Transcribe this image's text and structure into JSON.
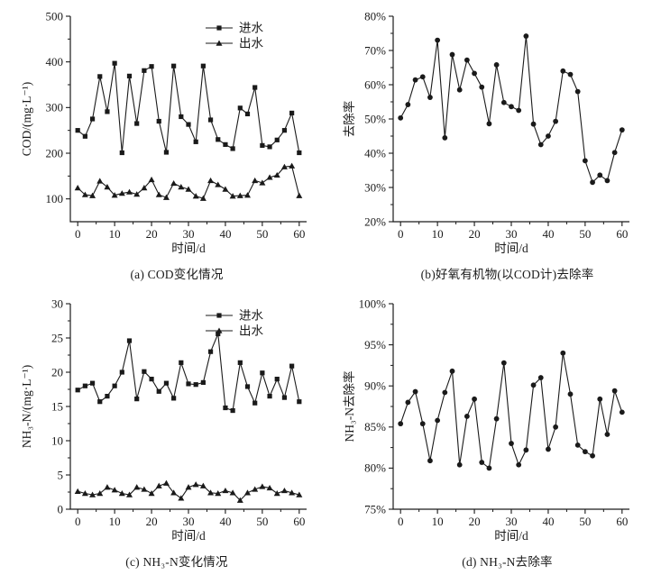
{
  "page": {
    "background": "#ffffff",
    "ink": "#1a1a1a"
  },
  "chart_data": [
    {
      "id": "a",
      "type": "line",
      "caption": "(a) COD变化情况",
      "xlabel": "时间/d",
      "ylabel": "COD/(mg·L⁻¹)",
      "xlim": [
        -2,
        62
      ],
      "ylim": [
        50,
        500
      ],
      "xticks": [
        0,
        10,
        20,
        30,
        40,
        50,
        60
      ],
      "xtick_labels": [
        "0",
        "10",
        "20",
        "30",
        "40",
        "50",
        "60"
      ],
      "yticks": [
        100,
        200,
        300,
        400,
        500
      ],
      "ytick_labels": [
        "100",
        "200",
        "300",
        "400",
        "500"
      ],
      "x_minor_step": 5,
      "y_minor_step": 50,
      "grid": false,
      "legend": true,
      "legend_position": "top-right",
      "x": [
        0,
        2,
        4,
        6,
        8,
        10,
        12,
        14,
        16,
        18,
        20,
        22,
        24,
        26,
        28,
        30,
        32,
        34,
        36,
        38,
        40,
        42,
        44,
        46,
        48,
        50,
        52,
        54,
        56,
        58,
        60
      ],
      "series": [
        {
          "key": "influent",
          "name": "进水",
          "marker": "square",
          "values": [
            250,
            237,
            275,
            368,
            291,
            397,
            201,
            369,
            265,
            381,
            390,
            270,
            202,
            391,
            280,
            263,
            225,
            391,
            273,
            230,
            219,
            210,
            299,
            286,
            344,
            217,
            214,
            229,
            250,
            288,
            201
          ]
        },
        {
          "key": "effluent",
          "name": "出水",
          "marker": "triangle",
          "values": [
            124,
            109,
            107,
            139,
            126,
            108,
            112,
            115,
            110,
            124,
            142,
            109,
            103,
            134,
            126,
            121,
            106,
            101,
            140,
            131,
            121,
            106,
            107,
            108,
            140,
            135,
            147,
            152,
            170,
            172,
            107
          ]
        }
      ]
    },
    {
      "id": "b",
      "type": "line",
      "caption": "(b)好氧有机物(以COD计)去除率",
      "xlabel": "时间/d",
      "ylabel": "去除率",
      "xlim": [
        -2,
        62
      ],
      "ylim": [
        20,
        80
      ],
      "xticks": [
        0,
        10,
        20,
        30,
        40,
        50,
        60
      ],
      "xtick_labels": [
        "0",
        "10",
        "20",
        "30",
        "40",
        "50",
        "60"
      ],
      "yticks": [
        20,
        30,
        40,
        50,
        60,
        70,
        80
      ],
      "ytick_labels": [
        "20%",
        "30%",
        "40%",
        "50%",
        "60%",
        "70%",
        "80%"
      ],
      "x_minor_step": 5,
      "y_minor_step": 5,
      "grid": false,
      "legend": false,
      "x": [
        0,
        2,
        4,
        6,
        8,
        10,
        12,
        14,
        16,
        18,
        20,
        22,
        24,
        26,
        28,
        30,
        32,
        34,
        36,
        38,
        40,
        42,
        44,
        46,
        48,
        50,
        52,
        54,
        56,
        58,
        60
      ],
      "series": [
        {
          "key": "cod-removal-rate",
          "name": null,
          "marker": "circle",
          "values": [
            50.3,
            54.2,
            61.4,
            62.3,
            56.3,
            73.0,
            44.5,
            68.8,
            58.5,
            67.2,
            63.3,
            59.3,
            48.6,
            65.8,
            54.8,
            53.6,
            52.5,
            74.2,
            48.5,
            42.5,
            45.0,
            49.3,
            64.0,
            63.0,
            58.0,
            37.8,
            31.5,
            33.6,
            32.0,
            40.2,
            46.8
          ]
        }
      ]
    },
    {
      "id": "c",
      "type": "line",
      "caption": "(c) NH₃-N变化情况",
      "xlabel": "时间/d",
      "ylabel": "NH₃-N/(mg·L⁻¹)",
      "xlim": [
        -2,
        62
      ],
      "ylim": [
        0,
        30
      ],
      "xticks": [
        0,
        10,
        20,
        30,
        40,
        50,
        60
      ],
      "xtick_labels": [
        "0",
        "10",
        "20",
        "30",
        "40",
        "50",
        "60"
      ],
      "yticks": [
        0,
        5,
        10,
        15,
        20,
        25,
        30
      ],
      "ytick_labels": [
        "0",
        "5",
        "10",
        "15",
        "20",
        "25",
        "30"
      ],
      "x_minor_step": 5,
      "y_minor_step": 2.5,
      "grid": false,
      "legend": true,
      "legend_position": "top-right",
      "x": [
        0,
        2,
        4,
        6,
        8,
        10,
        12,
        14,
        16,
        18,
        20,
        22,
        24,
        26,
        28,
        30,
        32,
        34,
        36,
        38,
        40,
        42,
        44,
        46,
        48,
        50,
        52,
        54,
        56,
        58,
        60
      ],
      "series": [
        {
          "key": "influent",
          "name": "进水",
          "marker": "square",
          "values": [
            17.4,
            18.0,
            18.4,
            15.7,
            16.5,
            18.0,
            20.0,
            24.6,
            16.1,
            20.1,
            19.0,
            17.2,
            18.4,
            16.2,
            21.4,
            18.3,
            18.2,
            18.5,
            23.0,
            25.6,
            14.8,
            14.4,
            21.4,
            17.9,
            15.5,
            19.9,
            16.5,
            19.0,
            16.3,
            20.9,
            15.7
          ]
        },
        {
          "key": "effluent",
          "name": "出水",
          "marker": "triangle",
          "values": [
            2.6,
            2.3,
            2.1,
            2.3,
            3.2,
            2.8,
            2.3,
            2.1,
            3.2,
            2.9,
            2.3,
            3.4,
            3.8,
            2.4,
            1.6,
            3.2,
            3.6,
            3.4,
            2.4,
            2.3,
            2.7,
            2.4,
            1.3,
            2.4,
            2.9,
            3.3,
            3.1,
            2.3,
            2.7,
            2.4,
            2.1
          ]
        }
      ]
    },
    {
      "id": "d",
      "type": "line",
      "caption": "(d) NH₃-N去除率",
      "xlabel": "时间/d",
      "ylabel": "NH₃-N去除率",
      "xlim": [
        -2,
        62
      ],
      "ylim": [
        75,
        100
      ],
      "xticks": [
        0,
        10,
        20,
        30,
        40,
        50,
        60
      ],
      "xtick_labels": [
        "0",
        "10",
        "20",
        "30",
        "40",
        "50",
        "60"
      ],
      "yticks": [
        75,
        80,
        85,
        90,
        95,
        100
      ],
      "ytick_labels": [
        "75%",
        "80%",
        "85%",
        "90%",
        "95%",
        "100%"
      ],
      "x_minor_step": 5,
      "y_minor_step": 2.5,
      "grid": false,
      "legend": false,
      "x": [
        0,
        2,
        4,
        6,
        8,
        10,
        12,
        14,
        16,
        18,
        20,
        22,
        24,
        26,
        28,
        30,
        32,
        34,
        36,
        38,
        40,
        42,
        44,
        46,
        48,
        50,
        52,
        54,
        56,
        58,
        60
      ],
      "series": [
        {
          "key": "nh3n-removal-rate",
          "name": null,
          "marker": "circle",
          "values": [
            85.4,
            88.0,
            89.3,
            85.4,
            80.9,
            85.8,
            89.2,
            91.8,
            80.4,
            86.3,
            88.4,
            80.7,
            80.0,
            86.0,
            92.8,
            83.0,
            80.4,
            82.2,
            90.1,
            91.0,
            82.3,
            85.0,
            94.0,
            89.0,
            82.8,
            82.0,
            81.5,
            88.4,
            84.1,
            89.4,
            86.8
          ]
        }
      ]
    }
  ]
}
